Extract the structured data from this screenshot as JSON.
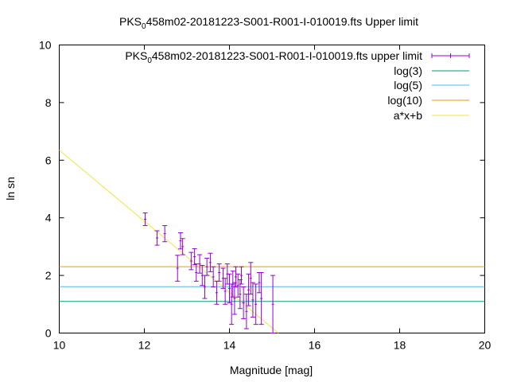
{
  "chart_data": {
    "type": "scatter",
    "title": {
      "prefix": "PKS",
      "sub": "0",
      "suffix": "458m02-20181223-S001-R001-I-010019.fts Upper limit"
    },
    "xlabel": "Magnitude [mag]",
    "ylabel": "ln sn",
    "xlim": [
      10,
      20
    ],
    "ylim": [
      0,
      10
    ],
    "xticks": [
      10,
      12,
      14,
      16,
      18,
      20
    ],
    "yticks": [
      0,
      2,
      4,
      6,
      8,
      10
    ],
    "grid": false,
    "legend_position": "top-right",
    "legend": [
      {
        "prefix": "PKS",
        "sub": "0",
        "suffix": "458m02-20181223-S001-R001-I-010019.fts upper limit",
        "color": "#9400d3",
        "kind": "errorbar"
      },
      {
        "label": "log(3)",
        "color": "#009e73",
        "kind": "line"
      },
      {
        "label": "log(5)",
        "color": "#56b4e9",
        "kind": "line"
      },
      {
        "label": "log(10)",
        "color": "#e69f00",
        "kind": "line"
      },
      {
        "label": "a*x+b",
        "color": "#f0e442",
        "kind": "line"
      }
    ],
    "hlines": [
      {
        "name": "log(3)",
        "y": 1.0986,
        "color": "#009e73"
      },
      {
        "name": "log(5)",
        "y": 1.6094,
        "color": "#56b4e9"
      },
      {
        "name": "log(10)",
        "y": 2.3026,
        "color": "#e69f00"
      }
    ],
    "fit_line": {
      "name": "a*x+b",
      "x": [
        10,
        15.15
      ],
      "y": [
        6.35,
        0
      ],
      "color": "#f0e442"
    },
    "points": [
      {
        "x": 12.02,
        "y": 3.95,
        "err": 0.22
      },
      {
        "x": 12.3,
        "y": 3.3,
        "err": 0.25
      },
      {
        "x": 12.48,
        "y": 3.45,
        "err": 0.28
      },
      {
        "x": 12.78,
        "y": 2.25,
        "err": 0.45
      },
      {
        "x": 12.85,
        "y": 3.2,
        "err": 0.28
      },
      {
        "x": 12.9,
        "y": 3.0,
        "err": 0.28
      },
      {
        "x": 13.1,
        "y": 2.5,
        "err": 0.3
      },
      {
        "x": 13.18,
        "y": 2.65,
        "err": 0.28
      },
      {
        "x": 13.22,
        "y": 2.1,
        "err": 0.3
      },
      {
        "x": 13.3,
        "y": 2.4,
        "err": 0.32
      },
      {
        "x": 13.36,
        "y": 2.0,
        "err": 0.35
      },
      {
        "x": 13.42,
        "y": 1.6,
        "err": 0.4
      },
      {
        "x": 13.47,
        "y": 2.3,
        "err": 0.3
      },
      {
        "x": 13.55,
        "y": 2.45,
        "err": 0.32
      },
      {
        "x": 13.62,
        "y": 1.95,
        "err": 0.35
      },
      {
        "x": 13.7,
        "y": 1.4,
        "err": 0.4
      },
      {
        "x": 13.76,
        "y": 2.1,
        "err": 0.3
      },
      {
        "x": 13.85,
        "y": 1.9,
        "err": 0.35
      },
      {
        "x": 13.9,
        "y": 1.45,
        "err": 0.45
      },
      {
        "x": 13.95,
        "y": 2.05,
        "err": 0.35
      },
      {
        "x": 14.0,
        "y": 1.55,
        "err": 0.5
      },
      {
        "x": 14.05,
        "y": 1.0,
        "err": 0.7
      },
      {
        "x": 14.08,
        "y": 1.7,
        "err": 0.45
      },
      {
        "x": 14.12,
        "y": 1.2,
        "err": 0.55
      },
      {
        "x": 14.15,
        "y": 1.95,
        "err": 0.35
      },
      {
        "x": 14.2,
        "y": 1.65,
        "err": 0.4
      },
      {
        "x": 14.25,
        "y": 1.35,
        "err": 0.5
      },
      {
        "x": 14.28,
        "y": 2.0,
        "err": 0.3
      },
      {
        "x": 14.33,
        "y": 1.05,
        "err": 0.55
      },
      {
        "x": 14.4,
        "y": 0.75,
        "err": 0.6
      },
      {
        "x": 14.45,
        "y": 1.5,
        "err": 0.55
      },
      {
        "x": 14.5,
        "y": 1.9,
        "err": 0.55
      },
      {
        "x": 14.55,
        "y": 1.15,
        "err": 0.6
      },
      {
        "x": 14.62,
        "y": 1.0,
        "err": 0.7
      },
      {
        "x": 14.7,
        "y": 1.75,
        "err": 0.35
      },
      {
        "x": 14.75,
        "y": 1.2,
        "err": 0.9
      },
      {
        "x": 15.02,
        "y": 1.0,
        "err": 1.0
      }
    ]
  }
}
